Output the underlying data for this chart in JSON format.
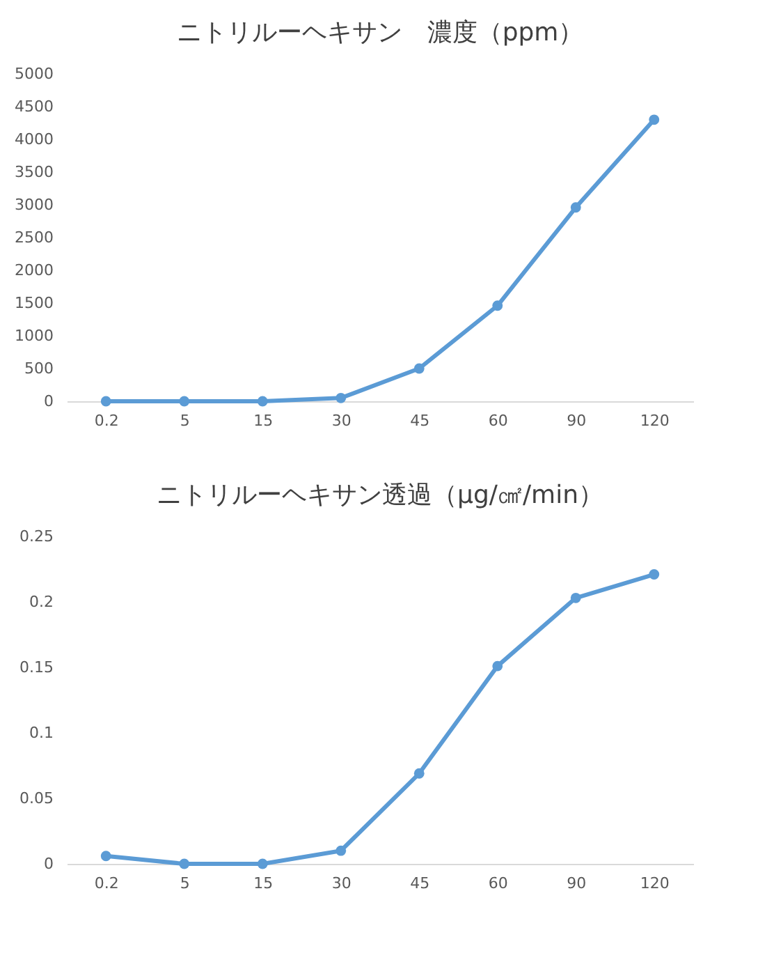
{
  "chart_data": [
    {
      "type": "line",
      "title": "ニトリルーヘキサン　濃度（ppm）",
      "categories": [
        "0.2",
        "5",
        "15",
        "30",
        "45",
        "60",
        "90",
        "120"
      ],
      "series": [
        {
          "color": "#5b9bd5",
          "values": [
            0,
            0,
            0,
            50,
            500,
            1460,
            2960,
            4300
          ]
        }
      ],
      "ylim": [
        0,
        5000
      ],
      "yticks": [
        0,
        500,
        1000,
        1500,
        2000,
        2500,
        3000,
        3500,
        4000,
        4500,
        5000
      ],
      "marker": "circle",
      "grid": false
    },
    {
      "type": "line",
      "title": "ニトリルーヘキサン透過（μg/㎠/min）",
      "categories": [
        "0.2",
        "5",
        "15",
        "30",
        "45",
        "60",
        "90",
        "120"
      ],
      "series": [
        {
          "color": "#5b9bd5",
          "values": [
            0.006,
            0,
            0,
            0.01,
            0.069,
            0.151,
            0.203,
            0.221
          ]
        }
      ],
      "ylim": [
        0,
        0.25
      ],
      "yticks": [
        0,
        0.05,
        0.1,
        0.15,
        0.2,
        0.25
      ],
      "marker": "circle",
      "grid": false
    }
  ]
}
